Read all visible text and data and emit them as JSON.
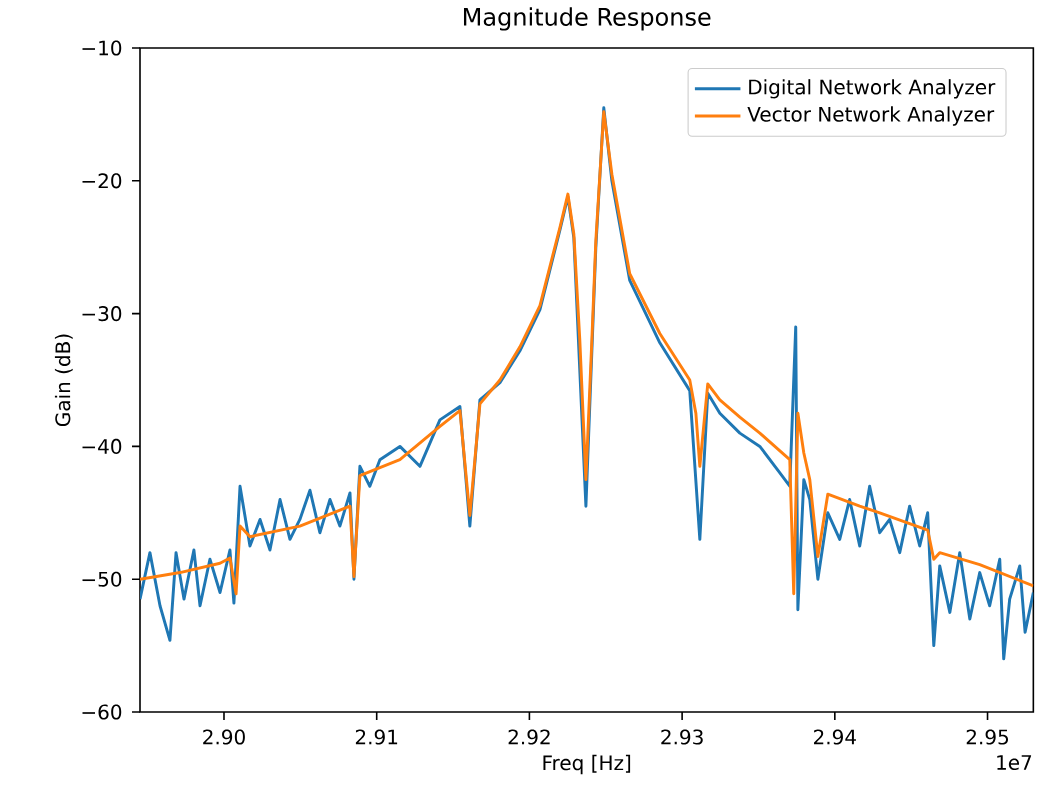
{
  "chart_data": {
    "type": "line",
    "title": "Magnitude Response",
    "xlabel": "Freq [Hz]",
    "ylabel": "Gain (dB)",
    "annotations": [
      "1e7"
    ],
    "xlim": [
      2.8945,
      2.953
    ],
    "ylim": [
      -60,
      -10
    ],
    "xticks": [
      {
        "value": 2.9,
        "label": "2.90"
      },
      {
        "value": 2.91,
        "label": "2.91"
      },
      {
        "value": 2.92,
        "label": "2.92"
      },
      {
        "value": 2.93,
        "label": "2.93"
      },
      {
        "value": 2.94,
        "label": "2.94"
      },
      {
        "value": 2.95,
        "label": "2.95"
      }
    ],
    "yticks": [
      {
        "value": -60,
        "label": "−60"
      },
      {
        "value": -50,
        "label": "−50"
      },
      {
        "value": -40,
        "label": "−40"
      },
      {
        "value": -30,
        "label": "−30"
      },
      {
        "value": -20,
        "label": "−20"
      },
      {
        "value": -10,
        "label": "−10"
      }
    ],
    "legend": "top right",
    "grid": false,
    "marker": "none",
    "line_style": "solid",
    "series": [
      {
        "name": "Digital Network Analyzer",
        "color": "#1f77b4",
        "x": [
          2.8945,
          2.89515,
          2.89581,
          2.89646,
          2.89686,
          2.89738,
          2.89803,
          2.89843,
          2.89908,
          2.89974,
          2.90039,
          2.90065,
          2.90105,
          2.9017,
          2.90236,
          2.90301,
          2.90367,
          2.90432,
          2.90497,
          2.90563,
          2.90628,
          2.90694,
          2.90759,
          2.90825,
          2.90851,
          2.9089,
          2.90955,
          2.91021,
          2.91152,
          2.91283,
          2.91414,
          2.91545,
          2.9161,
          2.91676,
          2.91807,
          2.91938,
          2.92069,
          2.922,
          2.92252,
          2.92291,
          2.9237,
          2.92435,
          2.92487,
          2.9254,
          2.92657,
          2.92854,
          2.9305,
          2.93116,
          2.93168,
          2.93247,
          2.93378,
          2.93509,
          2.9364,
          2.93705,
          2.93744,
          2.93758,
          2.93797,
          2.93836,
          2.93889,
          2.93954,
          2.94032,
          2.94097,
          2.94163,
          2.94228,
          2.94294,
          2.94359,
          2.94425,
          2.9449,
          2.94556,
          2.94608,
          2.94648,
          2.94687,
          2.94753,
          2.94818,
          2.94884,
          2.94949,
          2.95014,
          2.9508,
          2.95106,
          2.95145,
          2.95211,
          2.95246,
          2.953
        ],
        "values": [
          -51.5,
          -48,
          -52,
          -54.6,
          -48,
          -51.5,
          -47.8,
          -52,
          -48.5,
          -51,
          -47.8,
          -51.8,
          -43.0,
          -47.5,
          -45.5,
          -47.8,
          -44,
          -47,
          -45.5,
          -43.3,
          -46.5,
          -44,
          -46,
          -43.5,
          -50,
          -41.5,
          -43,
          -41,
          -40,
          -41.5,
          -38,
          -37,
          -46,
          -36.5,
          -35.2,
          -32.8,
          -29.7,
          -23.7,
          -21.2,
          -24.3,
          -44.5,
          -25,
          -14.5,
          -20,
          -27.5,
          -32.2,
          -35.8,
          -47.0,
          -36.0,
          -37.5,
          -39.0,
          -40.0,
          -42.0,
          -43.0,
          -31.0,
          -52.3,
          -42.5,
          -44.0,
          -50.0,
          -45.0,
          -47.0,
          -44.0,
          -47.5,
          -43.0,
          -46.5,
          -45.5,
          -48.0,
          -44.5,
          -47.5,
          -45.0,
          -55.0,
          -49.0,
          -52.5,
          -48.0,
          -53.0,
          -49.5,
          -52.0,
          -48.5,
          -56.0,
          -51.5,
          -49.0,
          -54.0,
          -51.0
        ]
      },
      {
        "name": "Vector Network Analyzer",
        "color": "#ff7f0e",
        "x": [
          2.8945,
          2.89712,
          2.89974,
          2.90039,
          2.90079,
          2.90105,
          2.9017,
          2.90497,
          2.90825,
          2.90851,
          2.9089,
          2.91152,
          2.91414,
          2.91545,
          2.9161,
          2.91676,
          2.91807,
          2.91938,
          2.92069,
          2.922,
          2.92252,
          2.92291,
          2.9233,
          2.9237,
          2.92409,
          2.92435,
          2.92487,
          2.9254,
          2.92657,
          2.92854,
          2.9305,
          2.9309,
          2.93116,
          2.93168,
          2.93247,
          2.93378,
          2.93509,
          2.93705,
          2.93731,
          2.93758,
          2.93797,
          2.93836,
          2.93889,
          2.93954,
          2.94163,
          2.94294,
          2.94608,
          2.94648,
          2.94687,
          2.94949,
          2.953
        ],
        "values": [
          -50.0,
          -49.5,
          -48.8,
          -48.4,
          -51.1,
          -46.0,
          -46.8,
          -46.0,
          -44.5,
          -49.8,
          -42.2,
          -41.0,
          -38.5,
          -37.3,
          -45.2,
          -36.8,
          -35.0,
          -32.5,
          -29.4,
          -23.5,
          -21.0,
          -24.0,
          -32,
          -42.5,
          -32,
          -24.5,
          -14.8,
          -19.5,
          -27.0,
          -31.5,
          -35.0,
          -37.5,
          -41.5,
          -35.3,
          -36.5,
          -37.8,
          -39.0,
          -41.0,
          -51.1,
          -37.5,
          -40.5,
          -42.5,
          -48.3,
          -43.6,
          -44.5,
          -45.0,
          -46.3,
          -48.5,
          -48.0,
          -48.9,
          -50.5
        ]
      }
    ]
  }
}
